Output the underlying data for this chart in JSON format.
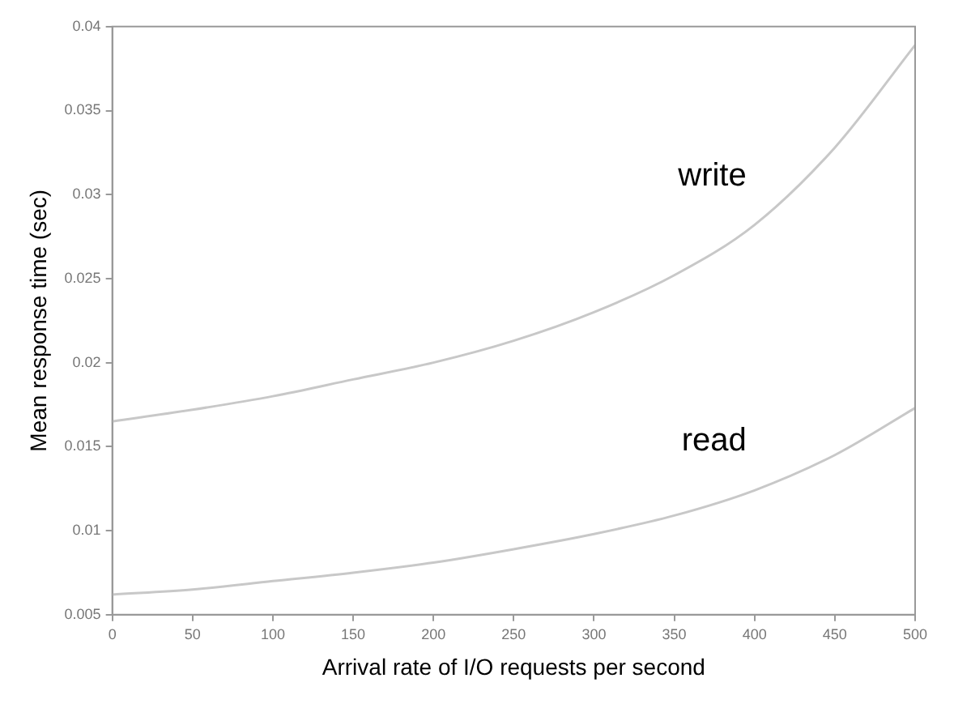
{
  "chart_data": {
    "type": "line",
    "xlabel": "Arrival rate of I/O requests per second",
    "ylabel": "Mean response time (sec)",
    "x": [
      0,
      50,
      100,
      150,
      200,
      250,
      300,
      350,
      400,
      450,
      500
    ],
    "series": [
      {
        "name": "write",
        "color": "#c8c8c8",
        "values": [
          0.0165,
          0.0172,
          0.018,
          0.019,
          0.02,
          0.0213,
          0.023,
          0.0252,
          0.0282,
          0.0328,
          0.0389
        ]
      },
      {
        "name": "read",
        "color": "#c8c8c8",
        "values": [
          0.0062,
          0.0065,
          0.007,
          0.0075,
          0.0081,
          0.0089,
          0.0098,
          0.0109,
          0.0124,
          0.0145,
          0.0173
        ]
      }
    ],
    "xlim": [
      0,
      500
    ],
    "xticks": [
      0,
      50,
      100,
      150,
      200,
      250,
      300,
      350,
      400,
      450,
      500
    ],
    "ylim": [
      0.005,
      0.04
    ],
    "yticks": [
      0.005,
      0.01,
      0.015,
      0.02,
      0.025,
      0.03,
      0.035,
      0.04
    ],
    "grid": false,
    "legend": false,
    "marker": "none",
    "line_style": "solid"
  }
}
